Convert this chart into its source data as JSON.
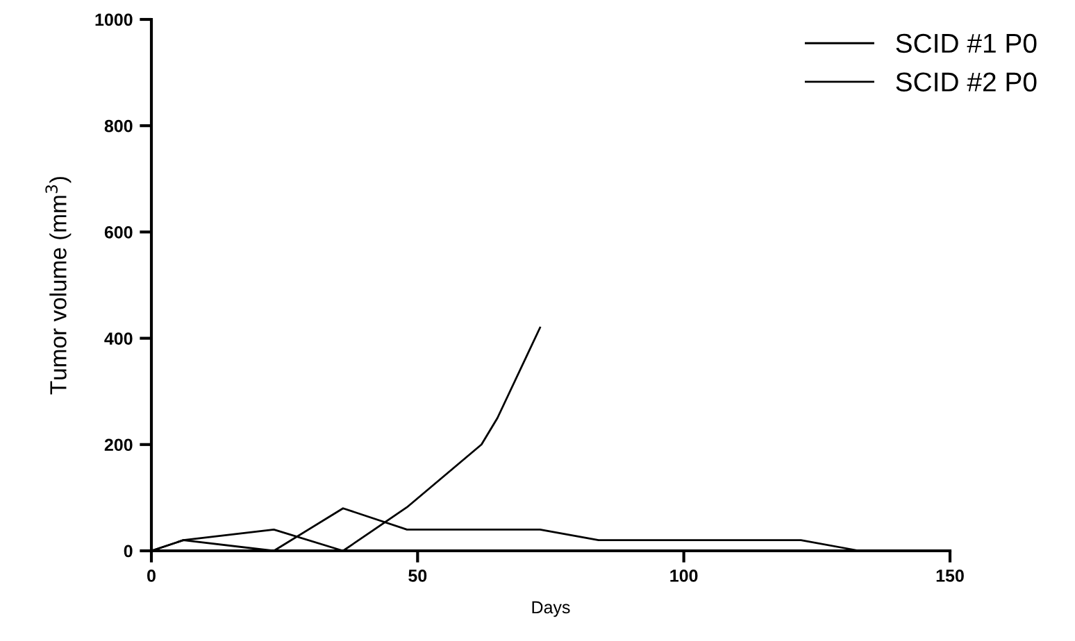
{
  "chart_data": {
    "type": "line",
    "xlabel": "Days",
    "ylabel": "Tumor volume (mm$^{3}$)",
    "xlim": [
      0,
      150
    ],
    "xticks": [
      0,
      50,
      100,
      150
    ],
    "ylim": [
      0,
      1000
    ],
    "yticks": [
      0,
      200,
      400,
      600,
      800,
      1000
    ],
    "series": [
      {
        "name": "SCID #1 P0",
        "color": "#000000",
        "x": [
          0,
          6,
          23,
          36,
          48,
          62,
          65,
          73
        ],
        "values": [
          0,
          20,
          40,
          0,
          82,
          200,
          250,
          420
        ]
      },
      {
        "name": "SCID #2 P0",
        "color": "#000000",
        "x": [
          0,
          6,
          23,
          36,
          48,
          62,
          73,
          84,
          122,
          133,
          150
        ],
        "values": [
          0,
          20,
          0,
          80,
          40,
          40,
          40,
          20,
          20,
          0,
          0
        ]
      }
    ],
    "legend": "top right",
    "grid": false,
    "marker": "none",
    "line_style": "solid"
  }
}
